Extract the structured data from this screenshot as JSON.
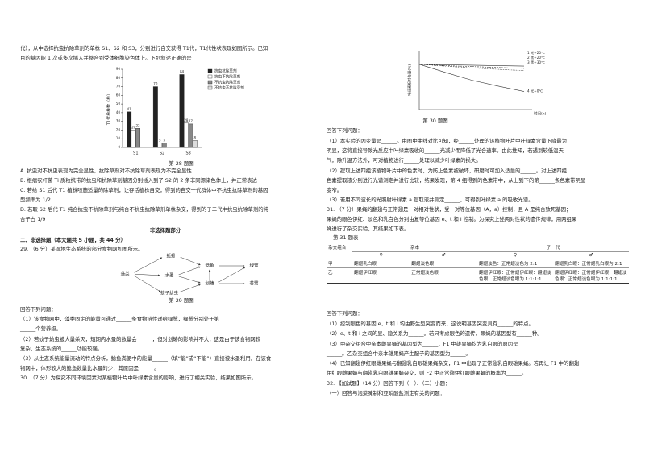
{
  "left": {
    "intro": [
      "代），从中选择抗虫抗除草剂的单株 S1、S2 和 S3，分别进行自交获得 T1代，T1代性状表现如图所示。已知",
      "目的基因能 1 次或多次插入并整合到受体细胞染色体上。下列叙述正确的是"
    ],
    "options": [
      "A. 抗虫对不抗虫表现为完全显性，抗除草剂对不抗除草剂表现为不完全显性",
      "B. 根瘤农杆菌 Ti 质粒携带的抗虫和抗除草剂基因分别插入到了 S2 的 2 条非同源染色体上，并正常表达",
      "C. 若给 S1 后代 T1 植株喷施适量的除草剂，让存活植株自交，得到的自交一代群体中不抗虫抗除草剂的基因",
      "型频率为 1/2",
      "D. 若取 S2 后代 T1 纯合抗虫不抗除草剂与纯合不抗虫抗除草剂单株杂交，得到的子二代中抗虫抗除草剂的纯",
      "合子占 1/9"
    ],
    "section_title": "非选择题部分",
    "section_heading": "二、非选择题（本大题共 5 小题，共 44 分）",
    "q29": {
      "stem": "29. （6 分）某湿地生态系统的部分食物网如图所示。",
      "nodes": [
        "蚯蚓",
        "藻类",
        "水蚤",
        "蚊子幼虫",
        "鲶鱼",
        "划蝽",
        "绿鹭",
        "苍鹭"
      ],
      "caption": "第 29 题图",
      "prompt": "回答下列问题：",
      "lines": [
        "（1）该食物网中，藻类固定的能量可通过______条食物链传递给绿鹭，绿鹭分别处于第",
        "______个营养级。",
        "（2）若蚊子幼虫被大量杀灭，短期内水蚤的数量会______，但对划蝽的影响并不大，这是由于该食物网较",
        "复杂，生态系统的______功能较强。",
        "（3）从生态系统能量流动的特点分析，鲶鱼粪便中的能量______（填“能”或“不能”）直接被水蚤利用。在该食",
        "物网中，体形较大的鲶鱼数量比水蚤的少，其原因是______。"
      ]
    },
    "q30_stem": "30. （7 分）为探究不同环境因素对某植物叶片中叶绿素含量的影响，进行了相关实验，结果如图所示。"
  },
  "right": {
    "q30": {
      "prompt": "回答下列问题：",
      "lines": [
        "（1）本实验的因变量是______。由图中曲线对比可知，经______处理的该植物叶片中叶绿素含量下降最为",
        "明显，这将直接导致光反应中叶绿素吸收的______光减少而降低了光合速率。由此推知，若遇到较低温天",
        "气，除升温方法外，可对植物进行______处理以减少叶绿素的损失。",
        "（2）提取上述四组该植物叶片中的色素时，为防止色素被破坏，研磨时可加入适量的______。对上述四组",
        "色素提取液分别进行光谱测定并进行比较，结果发现，第 4 组得到的色素带中，从上到下的第______条色素带明显",
        "变窄。",
        "（3）若用不同波长的光照射叶绿素 a 提取液并测定______，可得到叶绿素 a 的吸收光谱。"
      ]
    },
    "q31": {
      "stem": [
        "31. （7 分）果蝇的翻翅与正常翅是一对相对性状，受一对等位基因（A，a）控制，且 A 是纯合致死基因；",
        "果蝇的眼色伊红、淡色和乳白色分别由复等位基因 e、t 和 i 控制。为探究上述两对性状的遗传规律，用两组果",
        "蝇进行了杂交实验，其结果如下表。"
      ],
      "table": {
        "caption": "第 31 题表",
        "header": [
          "杂交组合",
          "亲本",
          "子一代"
        ],
        "subheader": [
          "♀",
          "♂",
          "♀",
          "♂"
        ],
        "rows": [
          [
            "甲",
            "翻翅乳白眼",
            "翻翅淡色眼",
            "翻翅淡色：正常翅淡色为 2:1",
            "翻翅乳白眼：正常翅乳白眼为 2:1"
          ],
          [
            "乙",
            "翻翅伊红眼",
            "正常翅淡色眼",
            "翻翅伊红眼：正常翅伊红眼：翻翅淡色眼：正常翅淡色眼为 1:1:1:1",
            "翻翅伊红眼：正常翅伊红眼：翻翅淡色眼：正常翅淡色眼为 1:1:1:1"
          ]
        ]
      },
      "prompt": "回答下列问题：",
      "lines": [
        "（1）控制眼色的基因 e、t 和 i 均由野生型突变而来，这说明基因突变具有______的特点。",
        "（2）e、t 和 i 之间的显、隐关系为______。若只考虑眼色的遗传，果蝇的基因型有______种。",
        "（3）甲杂交组合中亲本雌果蝇的基因型为______，F1 中雄果蝇均为乳白眼的原因是",
        "______。乙杂交组合中亲本雄果蝇产生配子的基因型为______。",
        "（4）已知翻翅伊红眼雌果蝇与翻翅乳白眼雄果蝇杂交，F1 中出现了正常翅乳白眼雄果蝇。若再让 F1 中的翻翅",
        "伊红眼雌果蝇与翻翅乳白眼雄果蝇杂交，则 F2 中正常翅伊红眼雌果蝇的概率为______。"
      ]
    },
    "q32": [
      "32. 【加试题】（14 分）回答下列（一）、（二）小题：",
      "（一）回答与泡菜腌制和亚硝酸盐测定有关的问题："
    ]
  },
  "chart_data": [
    {
      "type": "bar",
      "caption": "第 28 题图",
      "y_label": "T1代单株数（株）",
      "categories": [
        "S1",
        "S2",
        "S3"
      ],
      "series": [
        {
          "name": "抗虫抗除草剂",
          "color": "#222222",
          "values": [
            41,
            70,
            84
          ]
        },
        {
          "name": "抗虫不抗除草剂",
          "color": "#ffffff",
          "values": [
            20,
            5,
            28
          ]
        },
        {
          "name": "不抗虫抗除草剂",
          "color": "#888888",
          "values": [
            22,
            5,
            27
          ]
        },
        {
          "name": "不抗虫不抗除草剂",
          "color": "#dddddd",
          "values": [
            null,
            null,
            8
          ]
        }
      ],
      "ylim": [
        0,
        90
      ],
      "yticks": [
        0,
        10,
        20,
        30,
        40,
        50,
        60,
        70,
        80,
        90
      ]
    },
    {
      "type": "line",
      "caption": "第 30 题图",
      "y_label": "叶绿素相对含量(%)",
      "x_label": "时间(h)",
      "categories": [
        null,
        null,
        null,
        null,
        null
      ],
      "series": [
        {
          "name": "1 光+20℃",
          "color": "#333333",
          "values": [
            100,
            99,
            98,
            97,
            96
          ]
        },
        {
          "name": "2 黑+20℃",
          "color": "#333333",
          "values": [
            100,
            97,
            95,
            93,
            91
          ]
        },
        {
          "name": "3 黑+30℃",
          "color": "#333333",
          "values": [
            100,
            96,
            92,
            89,
            86
          ]
        },
        {
          "name": "4 光+0℃",
          "color": "#333333",
          "values": [
            100,
            82,
            65,
            52,
            40
          ]
        }
      ],
      "ylim": [
        0,
        130
      ]
    }
  ]
}
